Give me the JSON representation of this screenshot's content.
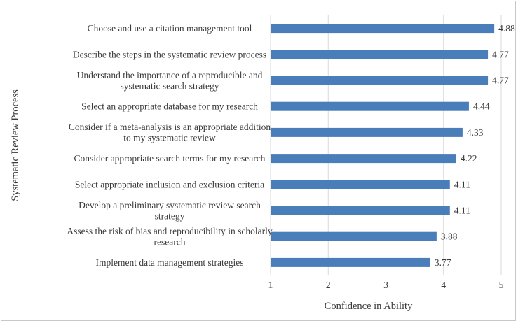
{
  "chart_data": {
    "type": "bar",
    "orientation": "horizontal",
    "categories": [
      [
        "Choose and use a citation management tool"
      ],
      [
        "Describe the steps in the systematic review process"
      ],
      [
        "Understand the importance of a reproducible and",
        "systematic search strategy"
      ],
      [
        "Select an appropriate database for my research"
      ],
      [
        "Consider if a meta-analysis is an appropriate addition",
        "to my systematic review"
      ],
      [
        "Consider appropriate search terms for my research"
      ],
      [
        "Select appropriate inclusion and exclusion criteria"
      ],
      [
        "Develop a preliminary systematic review search",
        "strategy"
      ],
      [
        "Assess the risk of bias and reproducibility in scholarly",
        "research"
      ],
      [
        "Implement data management strategies"
      ]
    ],
    "values": [
      4.88,
      4.77,
      4.77,
      4.44,
      4.33,
      4.22,
      4.11,
      4.11,
      3.88,
      3.77
    ],
    "data_labels": [
      "4.88",
      "4.77",
      "4.77",
      "4.44",
      "4.33",
      "4.22",
      "4.11",
      "4.11",
      "3.88",
      "3.77"
    ],
    "xlabel": "Confidence in Ability",
    "ylabel": "Systematic Review Process",
    "xlim": [
      1,
      5
    ],
    "xticks": [
      "1",
      "2",
      "3",
      "4",
      "5"
    ],
    "grid": true,
    "bar_color": "#4a7ebb"
  }
}
